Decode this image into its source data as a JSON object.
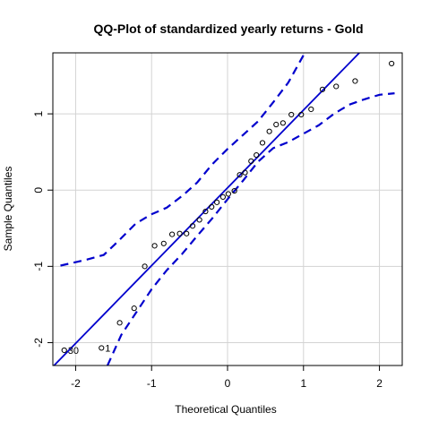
{
  "chart_data": {
    "type": "scatter",
    "title": "QQ-Plot of standardized yearly returns - Gold",
    "xlabel": "Theoretical Quantiles",
    "ylabel": "Sample Quantiles",
    "xlim": [
      -2.3,
      2.3
    ],
    "ylim": [
      -2.3,
      1.8
    ],
    "x_ticks": [
      -2,
      -1,
      0,
      1,
      2
    ],
    "x_tick_labels": [
      "-2",
      "-1",
      "0",
      "1",
      "2"
    ],
    "y_ticks": [
      -2,
      -1,
      0,
      1
    ],
    "y_tick_labels": [
      "-2",
      "-1",
      "0",
      "1"
    ],
    "grid": true,
    "points": [
      {
        "x": -2.15,
        "y": -2.1,
        "label": "30"
      },
      {
        "x": -1.66,
        "y": -2.07,
        "label": "1"
      },
      {
        "x": -1.42,
        "y": -1.74
      },
      {
        "x": -1.23,
        "y": -1.55
      },
      {
        "x": -1.09,
        "y": -1.0
      },
      {
        "x": -0.96,
        "y": -0.73
      },
      {
        "x": -0.84,
        "y": -0.7
      },
      {
        "x": -0.73,
        "y": -0.58
      },
      {
        "x": -0.63,
        "y": -0.57
      },
      {
        "x": -0.54,
        "y": -0.57
      },
      {
        "x": -0.46,
        "y": -0.47
      },
      {
        "x": -0.37,
        "y": -0.39
      },
      {
        "x": -0.29,
        "y": -0.28
      },
      {
        "x": -0.21,
        "y": -0.22
      },
      {
        "x": -0.14,
        "y": -0.16
      },
      {
        "x": -0.06,
        "y": -0.09
      },
      {
        "x": 0.01,
        "y": -0.05
      },
      {
        "x": 0.09,
        "y": -0.01
      },
      {
        "x": 0.16,
        "y": 0.2
      },
      {
        "x": 0.23,
        "y": 0.23
      },
      {
        "x": 0.31,
        "y": 0.38
      },
      {
        "x": 0.38,
        "y": 0.46
      },
      {
        "x": 0.46,
        "y": 0.62
      },
      {
        "x": 0.55,
        "y": 0.77
      },
      {
        "x": 0.64,
        "y": 0.86
      },
      {
        "x": 0.73,
        "y": 0.88
      },
      {
        "x": 0.84,
        "y": 0.99
      },
      {
        "x": 0.97,
        "y": 0.99
      },
      {
        "x": 1.1,
        "y": 1.06
      },
      {
        "x": 1.25,
        "y": 1.32
      },
      {
        "x": 1.43,
        "y": 1.36
      },
      {
        "x": 1.68,
        "y": 1.43
      },
      {
        "x": 2.16,
        "y": 1.66
      }
    ],
    "reference_line": {
      "intercept": 0.03,
      "slope": 1.02,
      "color": "#0000cd"
    },
    "confidence_band": {
      "color": "#0000cd",
      "upper": [
        [
          -2.2,
          -0.99
        ],
        [
          -1.85,
          -0.91
        ],
        [
          -1.63,
          -0.85
        ],
        [
          -1.43,
          -0.66
        ],
        [
          -1.21,
          -0.44
        ],
        [
          -1.01,
          -0.32
        ],
        [
          -0.8,
          -0.23
        ],
        [
          -0.59,
          -0.07
        ],
        [
          -0.4,
          0.1
        ],
        [
          -0.2,
          0.34
        ],
        [
          0.0,
          0.54
        ],
        [
          0.2,
          0.72
        ],
        [
          0.4,
          0.9
        ],
        [
          0.6,
          1.15
        ],
        [
          0.8,
          1.41
        ],
        [
          1.0,
          1.77
        ]
      ],
      "lower": [
        [
          -1.58,
          -2.3
        ],
        [
          -1.4,
          -1.9
        ],
        [
          -1.2,
          -1.6
        ],
        [
          -1.0,
          -1.3
        ],
        [
          -0.8,
          -1.05
        ],
        [
          -0.6,
          -0.84
        ],
        [
          -0.4,
          -0.6
        ],
        [
          -0.2,
          -0.37
        ],
        [
          0.0,
          -0.12
        ],
        [
          0.2,
          0.12
        ],
        [
          0.4,
          0.37
        ],
        [
          0.6,
          0.55
        ],
        [
          0.8,
          0.63
        ],
        [
          1.0,
          0.74
        ],
        [
          1.2,
          0.85
        ],
        [
          1.4,
          1.0
        ],
        [
          1.6,
          1.12
        ],
        [
          1.8,
          1.19
        ],
        [
          2.0,
          1.25
        ],
        [
          2.2,
          1.27
        ]
      ]
    },
    "colors": {
      "points": "#000000",
      "grid": "#d3d3d3",
      "frame": "#000000"
    }
  }
}
